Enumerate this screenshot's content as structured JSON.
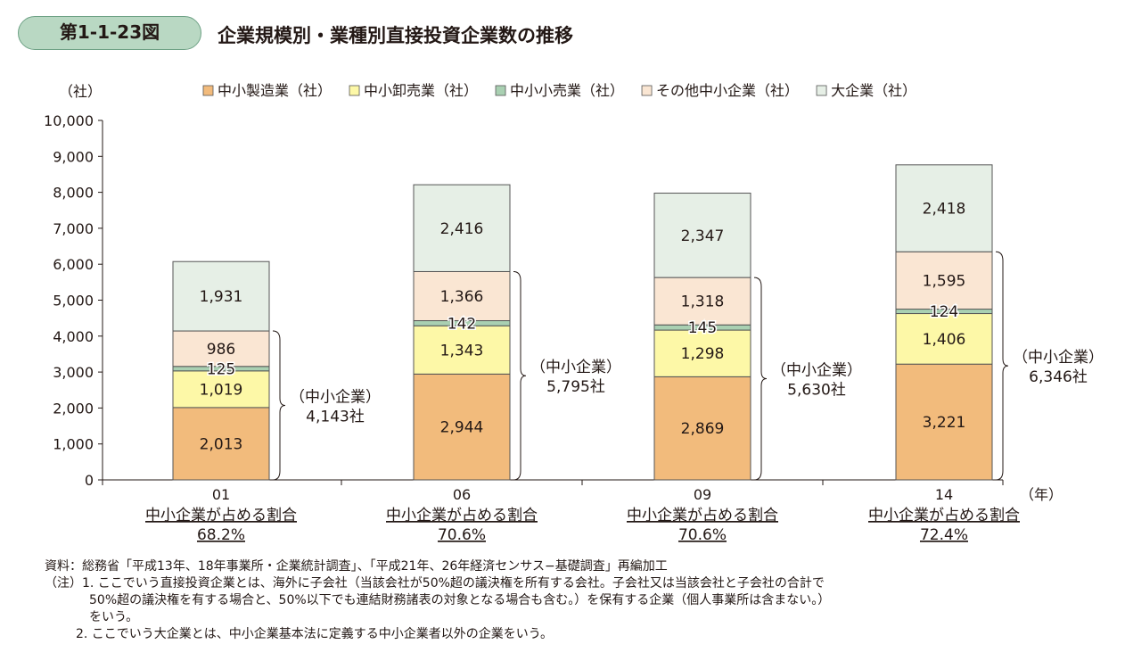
{
  "figure": {
    "number": "第1-1-23図",
    "title": "企業規模別・業種別直接投資企業数の推移"
  },
  "chart_data": {
    "type": "bar",
    "stacked": true,
    "ylabel": "（社）",
    "xlabel": "（年）",
    "ylim": [
      0,
      10000
    ],
    "yticks": [
      "0",
      "1,000",
      "2,000",
      "3,000",
      "4,000",
      "5,000",
      "6,000",
      "7,000",
      "8,000",
      "9,000",
      "10,000"
    ],
    "categories": [
      "01",
      "06",
      "09",
      "14"
    ],
    "legend_position": "top",
    "series": [
      {
        "name": "中小製造業（社）",
        "color": "#f2bb7c",
        "values": [
          2013,
          2944,
          2869,
          3221
        ],
        "labels": [
          "2,013",
          "2,944",
          "2,869",
          "3,221"
        ]
      },
      {
        "name": "中小卸売業（社）",
        "color": "#fdf8a7",
        "values": [
          1019,
          1343,
          1298,
          1406
        ],
        "labels": [
          "1,019",
          "1,343",
          "1,298",
          "1,406"
        ]
      },
      {
        "name": "中小小売業（社）",
        "color": "#a9d0b2",
        "values": [
          125,
          142,
          145,
          124
        ],
        "labels": [
          "125",
          "142",
          "145",
          "124"
        ]
      },
      {
        "name": "その他中小企業（社）",
        "color": "#fae6d3",
        "values": [
          986,
          1366,
          1318,
          1595
        ],
        "labels": [
          "986",
          "1,366",
          "1,318",
          "1,595"
        ]
      },
      {
        "name": "大企業（社）",
        "color": "#e6efe6",
        "values": [
          1931,
          2416,
          2347,
          2418
        ],
        "labels": [
          "1,931",
          "2,416",
          "2,347",
          "2,418"
        ]
      }
    ],
    "sme_totals": {
      "label": "（中小企業）",
      "values": [
        "4,143社",
        "5,795社",
        "5,630社",
        "6,346社"
      ]
    },
    "share_label": "中小企業が占める割合",
    "share_values": [
      "68.2%",
      "70.6%",
      "70.6%",
      "72.4%"
    ]
  },
  "notes": {
    "source": "資料：総務省「平成13年、18年事業所・企業統計調査」、「平成21年、26年経済センサス−基礎調査」再編加工",
    "note1_a": "（注）1. ここでいう直接投資企業とは、海外に子会社（当該会社が50%超の議決権を所有する会社。子会社又は当該会社と子会社の合計で",
    "note1_b": "50%超の議決権を有する場合と、50%以下でも連結財務諸表の対象となる場合も含む。）を保有する企業（個人事業所は含まない。）",
    "note1_c": "をいう。",
    "note2": "2. ここでいう大企業とは、中小企業基本法に定義する中小企業者以外の企業をいう。"
  }
}
